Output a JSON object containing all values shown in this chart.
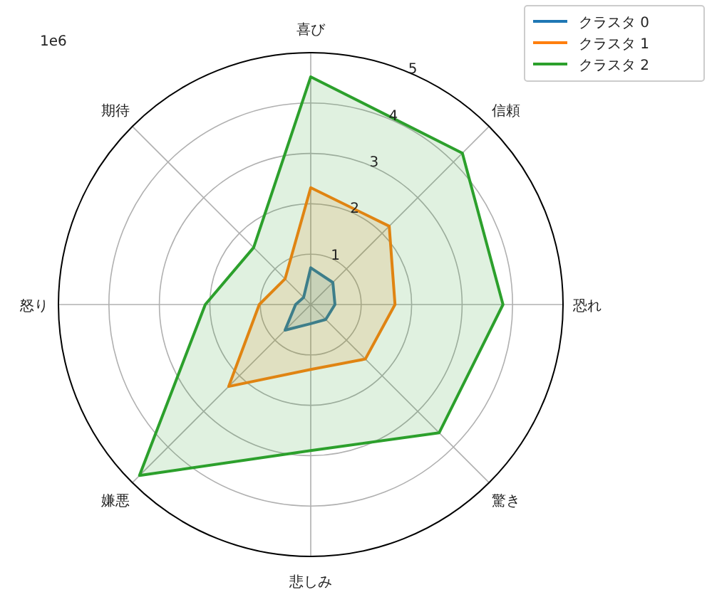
{
  "chart_data": {
    "type": "radar",
    "categories": [
      "喜び",
      "信頼",
      "恐れ",
      "驚き",
      "悲しみ",
      "嫌悪",
      "怒り",
      "期待"
    ],
    "series": [
      {
        "name": "クラスタ 0",
        "color": "#1f77b4",
        "values": [
          0.73,
          0.62,
          0.48,
          0.42,
          0.38,
          0.72,
          0.3,
          0.2
        ]
      },
      {
        "name": "クラスタ 1",
        "color": "#ff7f0e",
        "values": [
          2.32,
          2.2,
          1.67,
          1.53,
          1.29,
          2.3,
          1.02,
          0.72
        ]
      },
      {
        "name": "クラスタ 2",
        "color": "#2ca02c",
        "values": [
          4.52,
          4.25,
          3.81,
          3.6,
          2.9,
          4.8,
          2.09,
          1.6
        ]
      }
    ],
    "ylim": [
      0,
      5
    ],
    "yticks": [
      1,
      2,
      3,
      4,
      5
    ],
    "grid": true,
    "legend": "top right",
    "annotations": [
      "1e6"
    ]
  }
}
